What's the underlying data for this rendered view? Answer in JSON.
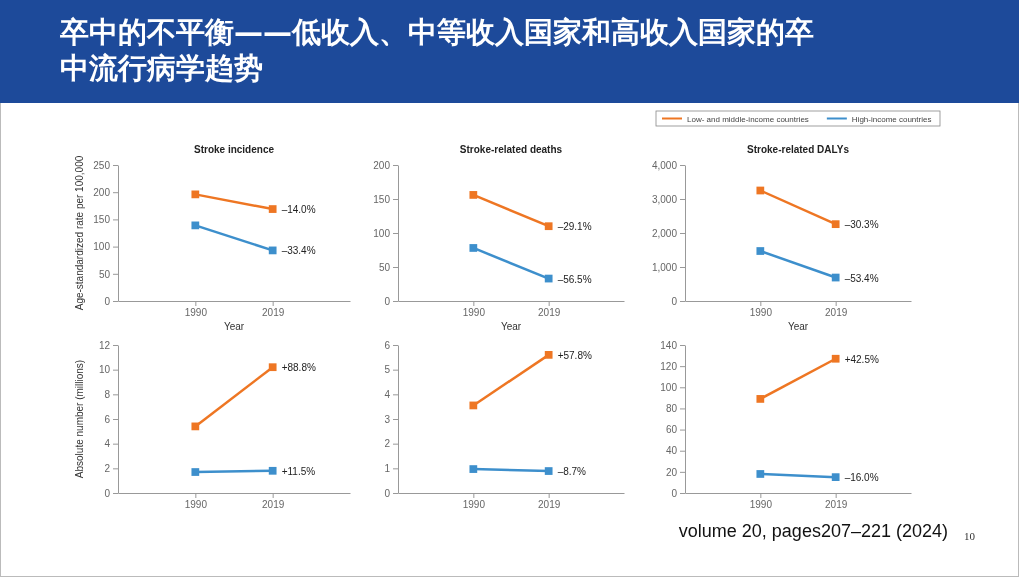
{
  "chart_data": [
    {
      "type": "other",
      "title": "卒中的不平衡——低收入、中等收入国家和高收入国家的卒中流行病学趋势",
      "annotations": [
        "volume 20, pages207–221 (2024)",
        "10"
      ]
    },
    {
      "type": "line",
      "title": "Stroke incidence",
      "xlabel": "Year",
      "ylabel": "Age-standardized rate per 100,000",
      "categories": [
        "1990",
        "2019"
      ],
      "ylim": [
        0,
        250
      ],
      "yticks": [
        0,
        50,
        100,
        150,
        200,
        250
      ],
      "marker": "square",
      "series": [
        {
          "color": "#ee7623",
          "values": [
            196,
            169
          ]
        },
        {
          "color": "#3d8fcc",
          "values": [
            139,
            93
          ]
        }
      ],
      "annotations": [
        {
          "text": "–14.0%",
          "x": "2019",
          "y": 169
        },
        {
          "text": "–33.4%",
          "x": "2019",
          "y": 93
        }
      ]
    },
    {
      "type": "line",
      "title": "Stroke-related deaths",
      "xlabel": "Year",
      "categories": [
        "1990",
        "2019"
      ],
      "ylim": [
        0,
        200
      ],
      "yticks": [
        0,
        50,
        100,
        150,
        200
      ],
      "marker": "square",
      "series": [
        {
          "color": "#ee7623",
          "values": [
            156,
            110
          ]
        },
        {
          "color": "#3d8fcc",
          "values": [
            78,
            33
          ]
        }
      ],
      "annotations": [
        {
          "text": "–29.1%",
          "x": "2019",
          "y": 110
        },
        {
          "text": "–56.5%",
          "x": "2019",
          "y": 33
        }
      ]
    },
    {
      "type": "line",
      "title": "Stroke-related DALYs",
      "xlabel": "Year",
      "categories": [
        "1990",
        "2019"
      ],
      "ylim": [
        0,
        4000
      ],
      "yticks": [
        0,
        {
          "value": 1000,
          "label": "1,000"
        },
        {
          "value": 2000,
          "label": "2,000"
        },
        {
          "value": 3000,
          "label": "3,000"
        },
        {
          "value": 4000,
          "label": "4,000"
        }
      ],
      "marker": "square",
      "legend": "top",
      "series": [
        {
          "name": "Low- and middle-income countries",
          "color": "#ee7623",
          "values": [
            3250,
            2260
          ]
        },
        {
          "name": "High-income countries",
          "color": "#3d8fcc",
          "values": [
            1470,
            690
          ]
        }
      ],
      "annotations": [
        {
          "text": "–30.3%",
          "x": "2019",
          "y": 2260
        },
        {
          "text": "–53.4%",
          "x": "2019",
          "y": 690
        }
      ]
    },
    {
      "type": "line",
      "ylabel": "Absolute number (millions)",
      "categories": [
        "1990",
        "2019"
      ],
      "ylim": [
        0,
        12
      ],
      "yticks": [
        0,
        2,
        4,
        6,
        8,
        10,
        12
      ],
      "marker": "square",
      "series": [
        {
          "color": "#ee7623",
          "values": [
            5.4,
            10.2
          ]
        },
        {
          "color": "#3d8fcc",
          "values": [
            1.7,
            1.8
          ]
        }
      ],
      "annotations": [
        {
          "text": "+88.8%",
          "x": "2019",
          "y": 10.2
        },
        {
          "text": "+11.5%",
          "x": "2019",
          "y": 1.8
        }
      ]
    },
    {
      "type": "line",
      "categories": [
        "1990",
        "2019"
      ],
      "ylim": [
        0,
        6
      ],
      "yticks": [
        0,
        1,
        2,
        3,
        4,
        5,
        6
      ],
      "marker": "square",
      "series": [
        {
          "color": "#ee7623",
          "values": [
            3.55,
            5.6
          ]
        },
        {
          "color": "#3d8fcc",
          "values": [
            0.97,
            0.89
          ]
        }
      ],
      "annotations": [
        {
          "text": "+57.8%",
          "x": "2019",
          "y": 5.6
        },
        {
          "text": "–8.7%",
          "x": "2019",
          "y": 0.89
        }
      ]
    },
    {
      "type": "line",
      "categories": [
        "1990",
        "2019"
      ],
      "ylim": [
        0,
        140
      ],
      "yticks": [
        0,
        20,
        40,
        60,
        80,
        100,
        120,
        140
      ],
      "marker": "square",
      "series": [
        {
          "color": "#ee7623",
          "values": [
            89,
            127
          ]
        },
        {
          "color": "#3d8fcc",
          "values": [
            18,
            15
          ]
        }
      ],
      "annotations": [
        {
          "text": "+42.5%",
          "x": "2019",
          "y": 127
        },
        {
          "text": "–16.0%",
          "x": "2019",
          "y": 15
        }
      ]
    }
  ]
}
